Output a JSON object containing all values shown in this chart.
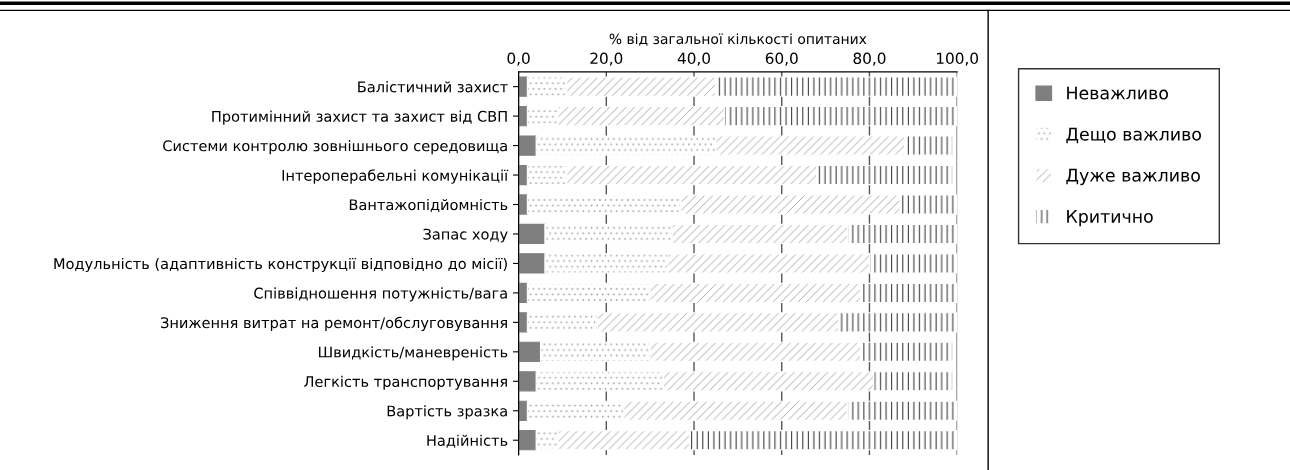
{
  "chart_data": {
    "type": "bar",
    "orientation": "horizontal",
    "stacked": true,
    "xlabel": "% від загальної кількості опитаних",
    "categories": [
      "Балістичний захист",
      "Протимінний захист та захист від СВП",
      "Системи контролю зовнішнього середовища",
      "Інтероперабельні комунікації",
      "Вантажопідйомність",
      "Запас ходу",
      "Модульність (адаптивність конструкції відповідно до місії)",
      "Співвідношення потужність/вага",
      "Зниження витрат на ремонт/обслуговування",
      "Швидкість/маневреність",
      "Легкість транспортування",
      "Вартість зразка",
      "Надійність"
    ],
    "series": [
      {
        "name": "Неважливо",
        "color": "#7f7f7f",
        "values": [
          2,
          2,
          4,
          2,
          2,
          6,
          6,
          2,
          2,
          5,
          4,
          2,
          4
        ]
      },
      {
        "name": "Дещо важливо",
        "color": "#ffffff",
        "values": [
          9,
          7,
          41,
          9,
          35,
          29,
          28,
          28,
          16,
          25,
          29,
          22,
          5
        ]
      },
      {
        "name": "Дуже важливо",
        "color": "#ffffff",
        "values": [
          34,
          38,
          43,
          57,
          50,
          40,
          46,
          48,
          55,
          48,
          48,
          51,
          30
        ]
      },
      {
        "name": "Критично",
        "color": "#ffffff",
        "values": [
          55,
          53,
          11,
          31,
          13,
          25,
          20,
          22,
          27,
          21,
          18,
          25,
          61
        ]
      }
    ],
    "xlim": [
      0,
      100
    ],
    "xticks": [
      {
        "value": 0,
        "label": "0,0"
      },
      {
        "value": 20,
        "label": "20,0"
      },
      {
        "value": 40,
        "label": "40,0"
      },
      {
        "value": 60,
        "label": "60,0"
      },
      {
        "value": 80,
        "label": "80,0"
      },
      {
        "value": 100,
        "label": "100,0"
      }
    ],
    "grid": "x",
    "legend": "right"
  }
}
